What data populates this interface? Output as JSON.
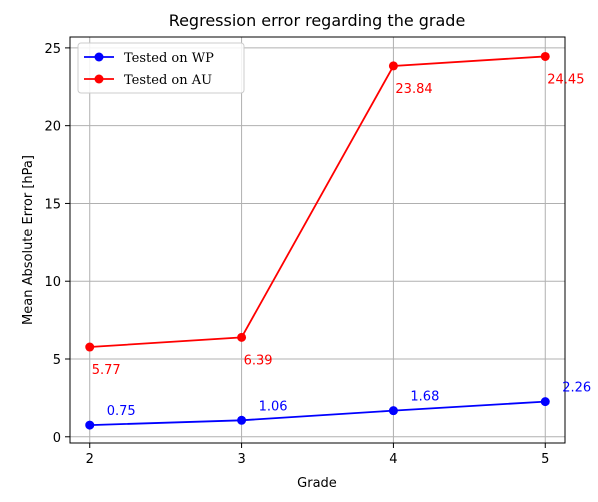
{
  "chart_data": {
    "type": "line",
    "title": "Regression error regarding the grade",
    "xlabel": "Grade",
    "ylabel": "Mean Absolute Error [hPa]",
    "x": [
      2,
      3,
      4,
      5
    ],
    "xticks": [
      "2",
      "3",
      "4",
      "5"
    ],
    "yticks": [
      "0",
      "5",
      "10",
      "15",
      "20",
      "25"
    ],
    "xlim": [
      1.87,
      5.13
    ],
    "ylim": [
      -0.4,
      25.7
    ],
    "grid": true,
    "legend_position": "top-left",
    "series": [
      {
        "name": "Tested on WP",
        "color": "#0000ff",
        "values": [
          0.75,
          1.06,
          1.68,
          2.26
        ],
        "labels": [
          "0.75",
          "1.06",
          "1.68",
          "2.26"
        ]
      },
      {
        "name": "Tested on AU",
        "color": "#ff0000",
        "values": [
          5.77,
          6.39,
          23.84,
          24.45
        ],
        "labels": [
          "5.77",
          "6.39",
          "23.84",
          "24.45"
        ]
      }
    ]
  }
}
